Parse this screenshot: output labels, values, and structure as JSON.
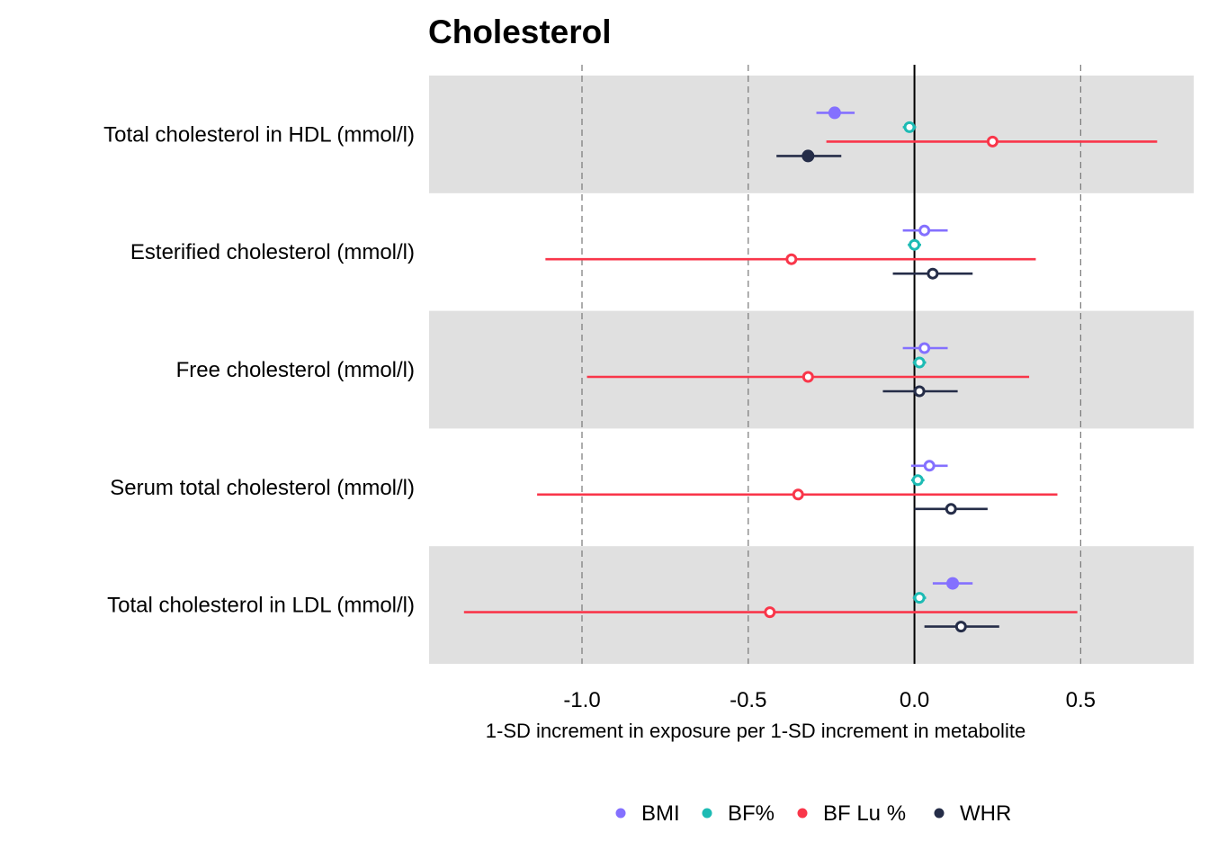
{
  "chart_data": {
    "type": "forest",
    "title": "Cholesterol",
    "xlabel": "1-SD increment in exposure per 1-SD increment in metabolite",
    "xlim": [
      -1.46,
      0.84
    ],
    "x_ticks": [
      -1.0,
      -0.5,
      0.0,
      0.5
    ],
    "x_tick_labels": [
      "-1.0",
      "-0.5",
      "0.0",
      "0.5"
    ],
    "reference_line": 0.0,
    "grid": "dashed vertical",
    "legend_position": "bottom",
    "categories": [
      "Total cholesterol in HDL (mmol/l)",
      "Esterified cholesterol (mmol/l)",
      "Free cholesterol (mmol/l)",
      "Serum total cholesterol (mmol/l)",
      "Total cholesterol in LDL (mmol/l)"
    ],
    "series": [
      {
        "name": "BMI",
        "color": "#8470FF",
        "points": [
          {
            "est": -0.24,
            "lo": -0.295,
            "hi": -0.18,
            "filled": true
          },
          {
            "est": 0.03,
            "lo": -0.035,
            "hi": 0.1,
            "filled": false
          },
          {
            "est": 0.03,
            "lo": -0.035,
            "hi": 0.1,
            "filled": false
          },
          {
            "est": 0.045,
            "lo": -0.01,
            "hi": 0.1,
            "filled": false
          },
          {
            "est": 0.115,
            "lo": 0.055,
            "hi": 0.175,
            "filled": true
          }
        ]
      },
      {
        "name": "BF%",
        "color": "#1DBBB4",
        "points": [
          {
            "est": -0.015,
            "lo": -0.035,
            "hi": 0.005,
            "filled": false
          },
          {
            "est": 0.0,
            "lo": -0.02,
            "hi": 0.02,
            "filled": false
          },
          {
            "est": 0.015,
            "lo": -0.005,
            "hi": 0.035,
            "filled": false
          },
          {
            "est": 0.01,
            "lo": -0.01,
            "hi": 0.03,
            "filled": false
          },
          {
            "est": 0.015,
            "lo": -0.005,
            "hi": 0.035,
            "filled": false
          }
        ]
      },
      {
        "name": "BF Lu %",
        "color": "#F9364A",
        "points": [
          {
            "est": 0.235,
            "lo": -0.265,
            "hi": 0.73,
            "filled": false
          },
          {
            "est": -0.37,
            "lo": -1.11,
            "hi": 0.365,
            "filled": false
          },
          {
            "est": -0.32,
            "lo": -0.985,
            "hi": 0.345,
            "filled": false
          },
          {
            "est": -0.35,
            "lo": -1.135,
            "hi": 0.43,
            "filled": false
          },
          {
            "est": -0.435,
            "lo": -1.355,
            "hi": 0.49,
            "filled": false
          }
        ]
      },
      {
        "name": "WHR",
        "color": "#252D48",
        "points": [
          {
            "est": -0.32,
            "lo": -0.415,
            "hi": -0.22,
            "filled": true
          },
          {
            "est": 0.055,
            "lo": -0.065,
            "hi": 0.175,
            "filled": false
          },
          {
            "est": 0.015,
            "lo": -0.095,
            "hi": 0.13,
            "filled": false
          },
          {
            "est": 0.11,
            "lo": 0.0,
            "hi": 0.22,
            "filled": false
          },
          {
            "est": 0.14,
            "lo": 0.03,
            "hi": 0.255,
            "filled": false
          }
        ]
      }
    ]
  }
}
